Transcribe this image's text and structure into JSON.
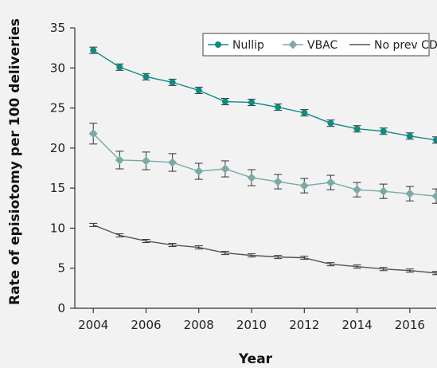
{
  "chart_data": {
    "type": "line",
    "title": "",
    "xlabel": "Year",
    "ylabel": "Rate of episiotomy per 100 deliveries",
    "xlim": [
      2003.3,
      2017.0
    ],
    "ylim": [
      0,
      35
    ],
    "x_ticks": [
      2004,
      2006,
      2008,
      2010,
      2012,
      2014,
      2016
    ],
    "x_tick_labels": [
      "2004",
      "2006",
      "2008",
      "2010",
      "2012",
      "2014",
      "2016"
    ],
    "y_ticks": [
      0,
      5,
      10,
      15,
      20,
      25,
      30,
      35
    ],
    "y_tick_labels": [
      "0",
      "5",
      "10",
      "15",
      "20",
      "25",
      "30",
      "35"
    ],
    "legend_position": "top-right",
    "grid": false,
    "x": [
      2004,
      2005,
      2006,
      2007,
      2008,
      2009,
      2010,
      2011,
      2012,
      2013,
      2014,
      2015,
      2016,
      2017
    ],
    "series": [
      {
        "name": "Nullip",
        "color": "#0f8b82",
        "marker": "circle",
        "values": [
          32.2,
          30.1,
          28.9,
          28.2,
          27.2,
          25.8,
          25.7,
          25.1,
          24.4,
          23.1,
          22.4,
          22.1,
          21.5,
          21.0
        ],
        "err": [
          0.4,
          0.4,
          0.4,
          0.4,
          0.4,
          0.4,
          0.4,
          0.4,
          0.4,
          0.4,
          0.4,
          0.4,
          0.4,
          0.4
        ]
      },
      {
        "name": "VBAC",
        "color": "#7aaaa6",
        "marker": "diamond",
        "values": [
          21.8,
          18.5,
          18.4,
          18.2,
          17.1,
          17.4,
          16.3,
          15.8,
          15.3,
          15.7,
          14.8,
          14.6,
          14.3,
          14.0
        ],
        "err": [
          1.3,
          1.1,
          1.1,
          1.1,
          1.0,
          1.0,
          1.0,
          0.9,
          0.9,
          0.9,
          0.9,
          0.9,
          0.9,
          0.9
        ]
      },
      {
        "name": "No prev CD",
        "color": "#555555",
        "marker": "none",
        "values": [
          10.4,
          9.1,
          8.4,
          7.9,
          7.6,
          6.9,
          6.6,
          6.4,
          6.3,
          5.5,
          5.2,
          4.9,
          4.7,
          4.4
        ],
        "err": [
          0.2,
          0.2,
          0.2,
          0.2,
          0.2,
          0.2,
          0.2,
          0.2,
          0.2,
          0.2,
          0.2,
          0.2,
          0.2,
          0.2
        ]
      }
    ]
  }
}
